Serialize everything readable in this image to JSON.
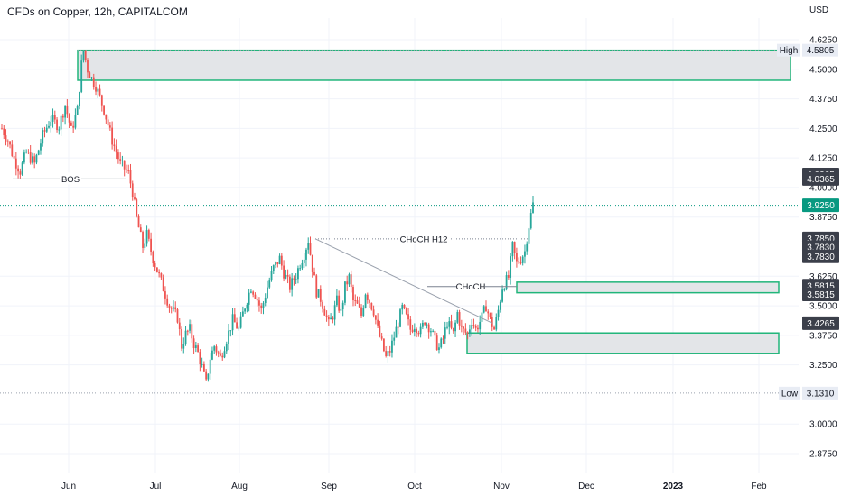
{
  "title": "CFDs on Copper, 12h, CAPITALCOM",
  "currency": "USD",
  "colors": {
    "up": "#26a69a",
    "down": "#ef5350",
    "zone_fill": "#e3e5e8",
    "zone_stroke": "#21b57a",
    "accent": "#089981",
    "label_bg": "#3b3f4a",
    "muted_bg": "#e8ecf4"
  },
  "chart_data": {
    "type": "candlestick",
    "x_ticks": [
      "Jun",
      "Jul",
      "Aug",
      "Sep",
      "Oct",
      "Nov",
      "Dec",
      "2023",
      "Feb"
    ],
    "y_ticks": [
      "4.6250",
      "4.5000",
      "4.3750",
      "4.2500",
      "4.1250",
      "4.0000",
      "3.8750",
      "3.6250",
      "3.5000",
      "3.3750",
      "3.2500",
      "3.0000",
      "2.8750"
    ],
    "ylim": [
      2.8,
      4.68
    ],
    "close_path": [
      [
        0,
        4.25
      ],
      [
        3,
        4.2
      ],
      [
        6,
        4.12
      ],
      [
        9,
        4.07
      ],
      [
        12,
        4.15
      ],
      [
        16,
        4.1
      ],
      [
        20,
        4.22
      ],
      [
        24,
        4.29
      ],
      [
        28,
        4.26
      ],
      [
        31,
        4.35
      ],
      [
        34,
        4.24
      ],
      [
        37,
        4.33
      ],
      [
        39,
        4.52
      ],
      [
        40,
        4.58
      ],
      [
        42,
        4.5
      ],
      [
        44,
        4.46
      ],
      [
        46,
        4.43
      ],
      [
        50,
        4.33
      ],
      [
        54,
        4.2
      ],
      [
        58,
        4.1
      ],
      [
        62,
        4.06
      ],
      [
        64,
        3.98
      ],
      [
        66,
        3.87
      ],
      [
        69,
        3.75
      ],
      [
        71,
        3.8
      ],
      [
        74,
        3.7
      ],
      [
        78,
        3.6
      ],
      [
        82,
        3.5
      ],
      [
        86,
        3.45
      ],
      [
        88,
        3.33
      ],
      [
        90,
        3.38
      ],
      [
        92,
        3.4
      ],
      [
        94,
        3.34
      ],
      [
        96,
        3.3
      ],
      [
        98,
        3.24
      ],
      [
        100,
        3.17
      ],
      [
        102,
        3.28
      ],
      [
        104,
        3.33
      ],
      [
        107,
        3.28
      ],
      [
        110,
        3.36
      ],
      [
        113,
        3.44
      ],
      [
        116,
        3.4
      ],
      [
        119,
        3.5
      ],
      [
        122,
        3.58
      ],
      [
        124,
        3.55
      ],
      [
        127,
        3.48
      ],
      [
        130,
        3.58
      ],
      [
        133,
        3.66
      ],
      [
        136,
        3.7
      ],
      [
        138,
        3.64
      ],
      [
        141,
        3.58
      ],
      [
        144,
        3.63
      ],
      [
        146,
        3.68
      ],
      [
        148,
        3.72
      ],
      [
        150,
        3.78
      ],
      [
        152,
        3.66
      ],
      [
        154,
        3.56
      ],
      [
        156,
        3.53
      ],
      [
        158,
        3.48
      ],
      [
        160,
        3.42
      ],
      [
        162,
        3.46
      ],
      [
        164,
        3.52
      ],
      [
        166,
        3.47
      ],
      [
        168,
        3.58
      ],
      [
        170,
        3.62
      ],
      [
        172,
        3.52
      ],
      [
        174,
        3.5
      ],
      [
        176,
        3.46
      ],
      [
        178,
        3.56
      ],
      [
        180,
        3.52
      ],
      [
        182,
        3.48
      ],
      [
        184,
        3.4
      ],
      [
        186,
        3.34
      ],
      [
        188,
        3.28
      ],
      [
        190,
        3.31
      ],
      [
        192,
        3.37
      ],
      [
        194,
        3.43
      ],
      [
        196,
        3.49
      ],
      [
        198,
        3.45
      ],
      [
        200,
        3.4
      ],
      [
        202,
        3.42
      ],
      [
        205,
        3.39
      ],
      [
        207,
        3.44
      ],
      [
        210,
        3.4
      ],
      [
        212,
        3.35
      ],
      [
        214,
        3.32
      ],
      [
        216,
        3.36
      ],
      [
        218,
        3.43
      ],
      [
        221,
        3.38
      ],
      [
        223,
        3.47
      ],
      [
        225,
        3.4
      ],
      [
        228,
        3.38
      ],
      [
        230,
        3.44
      ],
      [
        232,
        3.4
      ],
      [
        235,
        3.45
      ],
      [
        237,
        3.5
      ],
      [
        239,
        3.44
      ],
      [
        241,
        3.4
      ],
      [
        243,
        3.48
      ],
      [
        245,
        3.58
      ],
      [
        248,
        3.62
      ],
      [
        250,
        3.75
      ],
      [
        252,
        3.68
      ],
      [
        254,
        3.7
      ],
      [
        256,
        3.73
      ],
      [
        258,
        3.84
      ],
      [
        260,
        3.93
      ]
    ],
    "reference_lines": [
      {
        "value": 4.5805,
        "label": "High",
        "tag": "4.5805"
      },
      {
        "value": 3.131,
        "label": "Low",
        "tag": "3.1310"
      },
      {
        "value": 3.925,
        "tag": "3.9250",
        "current": true
      }
    ],
    "price_tags": [
      "4.0365",
      "4.0365",
      "3.7850",
      "3.7830",
      "3.7830",
      "3.5815",
      "3.5815",
      "3.4265"
    ],
    "price_tag_values": [
      4.055,
      4.0365,
      3.785,
      3.7475,
      3.709,
      3.585,
      3.548,
      3.4265
    ],
    "zones": [
      {
        "top": 4.5805,
        "bottom": 4.4535
      },
      {
        "top": 3.6,
        "bottom": 3.555
      },
      {
        "top": 3.385,
        "bottom": 3.299
      }
    ],
    "annotations": [
      {
        "text": "BOS",
        "value": 4.0365
      },
      {
        "text": "CHoCH H12",
        "value": 3.783
      },
      {
        "text": "CHoCH",
        "value": 3.5815
      }
    ],
    "trendline": [
      [
        0,
        3.783
      ],
      [
        1,
        3.4265
      ]
    ]
  }
}
